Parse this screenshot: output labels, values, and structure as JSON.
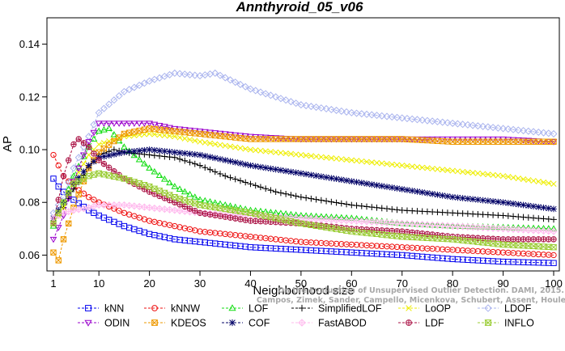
{
  "chart_data": {
    "type": "line",
    "title": "Annthyroid_05_v06",
    "xlabel": "Neighborhood size",
    "ylabel": "AP",
    "xlim": [
      0,
      100
    ],
    "ylim": [
      0.054,
      0.15
    ],
    "x_ticks": [
      1,
      10,
      20,
      30,
      40,
      50,
      60,
      70,
      80,
      90,
      100
    ],
    "y_ticks": [
      0.06,
      0.08,
      0.1,
      0.12,
      0.14
    ],
    "y_tick_labels": [
      "0.06",
      "0.08",
      "0.10",
      "0.12",
      "0.14"
    ],
    "grid": false,
    "legend": "bottom",
    "credit": "Campos, Zimek, Sander, Campello, Micenkova, Schubert, Assent, Houle",
    "credit_prefix": "On the Evaluation of Unsupervised Outlier Detection. DAMI, 2015.",
    "series": [
      {
        "name": "kNN",
        "color": "#0000ee",
        "marker": "square",
        "points": [
          [
            1,
            0.089
          ],
          [
            2,
            0.086
          ],
          [
            3,
            0.084
          ],
          [
            5,
            0.081
          ],
          [
            8,
            0.077
          ],
          [
            10,
            0.075
          ],
          [
            15,
            0.071
          ],
          [
            20,
            0.068
          ],
          [
            25,
            0.066
          ],
          [
            30,
            0.065
          ],
          [
            40,
            0.063
          ],
          [
            50,
            0.062
          ],
          [
            60,
            0.061
          ],
          [
            70,
            0.06
          ],
          [
            80,
            0.0585
          ],
          [
            90,
            0.0575
          ],
          [
            100,
            0.057
          ]
        ]
      },
      {
        "name": "kNNW",
        "color": "#ee1111",
        "marker": "circle",
        "points": [
          [
            1,
            0.098
          ],
          [
            2,
            0.094
          ],
          [
            3,
            0.09
          ],
          [
            5,
            0.086
          ],
          [
            8,
            0.082
          ],
          [
            10,
            0.08
          ],
          [
            15,
            0.076
          ],
          [
            20,
            0.073
          ],
          [
            25,
            0.071
          ],
          [
            30,
            0.069
          ],
          [
            40,
            0.067
          ],
          [
            50,
            0.065
          ],
          [
            60,
            0.064
          ],
          [
            70,
            0.063
          ],
          [
            80,
            0.062
          ],
          [
            90,
            0.061
          ],
          [
            100,
            0.06
          ]
        ]
      },
      {
        "name": "LOF",
        "color": "#11dd11",
        "marker": "triangle",
        "points": [
          [
            1,
            0.071
          ],
          [
            3,
            0.08
          ],
          [
            5,
            0.09
          ],
          [
            8,
            0.101
          ],
          [
            10,
            0.107
          ],
          [
            12,
            0.108
          ],
          [
            15,
            0.101
          ],
          [
            20,
            0.093
          ],
          [
            25,
            0.086
          ],
          [
            30,
            0.081
          ],
          [
            35,
            0.079
          ],
          [
            40,
            0.077
          ],
          [
            50,
            0.075
          ],
          [
            60,
            0.074
          ],
          [
            70,
            0.072
          ],
          [
            80,
            0.071
          ],
          [
            90,
            0.0705
          ],
          [
            100,
            0.07
          ]
        ]
      },
      {
        "name": "SimplifiedLOF",
        "color": "#000000",
        "marker": "plus",
        "points": [
          [
            1,
            0.074
          ],
          [
            3,
            0.078
          ],
          [
            5,
            0.085
          ],
          [
            8,
            0.093
          ],
          [
            10,
            0.098
          ],
          [
            13,
            0.1
          ],
          [
            15,
            0.099
          ],
          [
            20,
            0.098
          ],
          [
            25,
            0.097
          ],
          [
            30,
            0.094
          ],
          [
            35,
            0.09
          ],
          [
            40,
            0.087
          ],
          [
            45,
            0.084
          ],
          [
            50,
            0.082
          ],
          [
            60,
            0.079
          ],
          [
            70,
            0.077
          ],
          [
            80,
            0.076
          ],
          [
            90,
            0.075
          ],
          [
            100,
            0.0735
          ]
        ]
      },
      {
        "name": "LoOP",
        "color": "#eeee00",
        "marker": "x",
        "points": [
          [
            1,
            0.072
          ],
          [
            3,
            0.078
          ],
          [
            5,
            0.088
          ],
          [
            8,
            0.098
          ],
          [
            10,
            0.102
          ],
          [
            15,
            0.105
          ],
          [
            20,
            0.106
          ],
          [
            25,
            0.105
          ],
          [
            30,
            0.103
          ],
          [
            40,
            0.1
          ],
          [
            50,
            0.098
          ],
          [
            60,
            0.096
          ],
          [
            70,
            0.094
          ],
          [
            80,
            0.092
          ],
          [
            90,
            0.09
          ],
          [
            100,
            0.087
          ]
        ]
      },
      {
        "name": "LDOF",
        "color": "#aab4ee",
        "marker": "diamond",
        "points": [
          [
            1,
            0.076
          ],
          [
            3,
            0.082
          ],
          [
            5,
            0.093
          ],
          [
            8,
            0.105
          ],
          [
            10,
            0.114
          ],
          [
            15,
            0.122
          ],
          [
            20,
            0.126
          ],
          [
            25,
            0.129
          ],
          [
            30,
            0.128
          ],
          [
            33,
            0.129
          ],
          [
            40,
            0.123
          ],
          [
            50,
            0.117
          ],
          [
            60,
            0.114
          ],
          [
            70,
            0.112
          ],
          [
            80,
            0.11
          ],
          [
            90,
            0.108
          ],
          [
            100,
            0.106
          ]
        ]
      },
      {
        "name": "ODIN",
        "color": "#9900cc",
        "marker": "triangle-down",
        "points": [
          [
            1,
            0.066
          ],
          [
            3,
            0.075
          ],
          [
            5,
            0.088
          ],
          [
            8,
            0.103
          ],
          [
            10,
            0.11
          ],
          [
            15,
            0.11
          ],
          [
            20,
            0.11
          ],
          [
            25,
            0.108
          ],
          [
            30,
            0.107
          ],
          [
            40,
            0.105
          ],
          [
            50,
            0.104
          ],
          [
            60,
            0.104
          ],
          [
            70,
            0.104
          ],
          [
            80,
            0.104
          ],
          [
            90,
            0.104
          ],
          [
            100,
            0.103
          ]
        ]
      },
      {
        "name": "KDEOS",
        "color": "#ee9900",
        "marker": "square-x",
        "points": [
          [
            1,
            0.061
          ],
          [
            2,
            0.058
          ],
          [
            3,
            0.066
          ],
          [
            5,
            0.078
          ],
          [
            8,
            0.093
          ],
          [
            10,
            0.099
          ],
          [
            15,
            0.106
          ],
          [
            20,
            0.108
          ],
          [
            25,
            0.107
          ],
          [
            30,
            0.106
          ],
          [
            40,
            0.104
          ],
          [
            50,
            0.104
          ],
          [
            60,
            0.104
          ],
          [
            70,
            0.104
          ],
          [
            80,
            0.103
          ],
          [
            90,
            0.103
          ],
          [
            100,
            0.103
          ]
        ]
      },
      {
        "name": "COF",
        "color": "#000066",
        "marker": "star",
        "points": [
          [
            1,
            0.074
          ],
          [
            3,
            0.08
          ],
          [
            5,
            0.087
          ],
          [
            8,
            0.094
          ],
          [
            10,
            0.097
          ],
          [
            15,
            0.099
          ],
          [
            20,
            0.1
          ],
          [
            25,
            0.099
          ],
          [
            30,
            0.098
          ],
          [
            40,
            0.094
          ],
          [
            50,
            0.091
          ],
          [
            60,
            0.088
          ],
          [
            70,
            0.085
          ],
          [
            80,
            0.082
          ],
          [
            90,
            0.08
          ],
          [
            100,
            0.0775
          ]
        ]
      },
      {
        "name": "FastABOD",
        "color": "#ffbbee",
        "marker": "diamond-plus",
        "points": [
          [
            1,
            0.074
          ],
          [
            3,
            0.076
          ],
          [
            5,
            0.077
          ],
          [
            8,
            0.078
          ],
          [
            10,
            0.079
          ],
          [
            15,
            0.079
          ],
          [
            20,
            0.078
          ],
          [
            30,
            0.076
          ],
          [
            40,
            0.075
          ],
          [
            50,
            0.074
          ],
          [
            60,
            0.073
          ],
          [
            70,
            0.072
          ],
          [
            80,
            0.071
          ],
          [
            90,
            0.07
          ],
          [
            100,
            0.069
          ]
        ]
      },
      {
        "name": "LDF",
        "color": "#aa1144",
        "marker": "circle-plus",
        "points": [
          [
            1,
            0.072
          ],
          [
            3,
            0.09
          ],
          [
            5,
            0.102
          ],
          [
            6,
            0.104
          ],
          [
            8,
            0.101
          ],
          [
            10,
            0.096
          ],
          [
            15,
            0.089
          ],
          [
            20,
            0.084
          ],
          [
            25,
            0.08
          ],
          [
            30,
            0.076
          ],
          [
            40,
            0.073
          ],
          [
            50,
            0.072
          ],
          [
            60,
            0.07
          ],
          [
            70,
            0.069
          ],
          [
            80,
            0.067
          ],
          [
            90,
            0.066
          ],
          [
            100,
            0.066
          ]
        ]
      },
      {
        "name": "INFLO",
        "color": "#99cc33",
        "marker": "hourglass",
        "points": [
          [
            1,
            0.072
          ],
          [
            3,
            0.08
          ],
          [
            5,
            0.087
          ],
          [
            8,
            0.09
          ],
          [
            10,
            0.091
          ],
          [
            15,
            0.089
          ],
          [
            20,
            0.086
          ],
          [
            25,
            0.082
          ],
          [
            30,
            0.079
          ],
          [
            40,
            0.076
          ],
          [
            50,
            0.072
          ],
          [
            60,
            0.069
          ],
          [
            70,
            0.067
          ],
          [
            80,
            0.066
          ],
          [
            90,
            0.064
          ],
          [
            100,
            0.063
          ]
        ]
      }
    ]
  }
}
